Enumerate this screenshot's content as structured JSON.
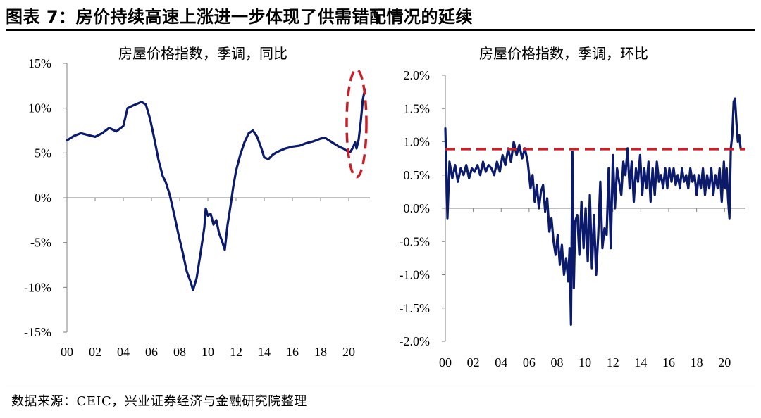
{
  "figure_title": "图表 7：房价持续高速上涨进一步体现了供需错配情况的延续",
  "source": "数据来源：CEIC，兴业证券经济与金融研究院整理",
  "colors": {
    "series": "#0b1a6b",
    "annotation": "#c8202a",
    "axis": "#808080"
  },
  "chart_data": [
    {
      "type": "line",
      "title": "房屋价格指数，季调，同比",
      "xlabel": "",
      "ylabel": "",
      "xlim": [
        2000,
        2021.5
      ],
      "ylim": [
        -0.15,
        0.15
      ],
      "xticks": [
        2000,
        2002,
        2004,
        2006,
        2008,
        2010,
        2012,
        2014,
        2016,
        2018,
        2020
      ],
      "xtick_labels": [
        "00",
        "02",
        "04",
        "06",
        "08",
        "10",
        "12",
        "14",
        "16",
        "18",
        "20"
      ],
      "yticks": [
        0.15,
        0.1,
        0.05,
        0,
        -0.05,
        -0.1,
        -0.15
      ],
      "ytick_labels": [
        "15%",
        "10%",
        "5%",
        "0%",
        "-5%",
        "-10%",
        "-15%"
      ],
      "grid": false,
      "annotation": {
        "type": "dashed-ellipse",
        "label": "",
        "x_range": [
          2019.85,
          2021.25
        ],
        "y_range": [
          0.023,
          0.143
        ]
      },
      "series": [
        {
          "x": [
            2000,
            2000.5,
            2001,
            2001.5,
            2002,
            2002.5,
            2003,
            2003.5,
            2004,
            2004.3,
            2004.7,
            2005,
            2005.3,
            2005.6,
            2005.9,
            2006.2,
            2006.5,
            2006.8,
            2007,
            2007.3,
            2007.6,
            2007.9,
            2008.2,
            2008.5,
            2008.8,
            2008.95,
            2009.2,
            2009.5,
            2009.75,
            2009.85,
            2010,
            2010.2,
            2010.4,
            2010.6,
            2010.8,
            2011,
            2011.2,
            2011.4,
            2011.6,
            2011.8,
            2012,
            2012.3,
            2012.6,
            2012.9,
            2013.2,
            2013.5,
            2013.8,
            2014,
            2014.3,
            2014.6,
            2014.9,
            2015.2,
            2015.5,
            2016,
            2016.5,
            2017,
            2017.5,
            2018,
            2018.3,
            2018.6,
            2019,
            2019.3,
            2019.6,
            2019.9,
            2020.1,
            2020.3,
            2020.45,
            2020.55,
            2020.7,
            2020.85,
            2021,
            2021.15
          ],
          "y": [
            0.064,
            0.069,
            0.072,
            0.07,
            0.068,
            0.072,
            0.078,
            0.074,
            0.08,
            0.1,
            0.103,
            0.105,
            0.107,
            0.104,
            0.088,
            0.066,
            0.042,
            0.024,
            0.018,
            0.003,
            -0.018,
            -0.04,
            -0.06,
            -0.082,
            -0.095,
            -0.103,
            -0.09,
            -0.06,
            -0.033,
            -0.012,
            -0.02,
            -0.018,
            -0.03,
            -0.025,
            -0.04,
            -0.048,
            -0.058,
            -0.03,
            -0.01,
            0.012,
            0.03,
            0.048,
            0.062,
            0.072,
            0.075,
            0.068,
            0.055,
            0.045,
            0.043,
            0.048,
            0.051,
            0.053,
            0.055,
            0.057,
            0.058,
            0.061,
            0.063,
            0.066,
            0.067,
            0.064,
            0.06,
            0.057,
            0.055,
            0.052,
            0.051,
            0.056,
            0.062,
            0.055,
            0.065,
            0.085,
            0.11,
            0.121
          ]
        }
      ]
    },
    {
      "type": "line",
      "title": "房屋价格指数，季调，环比",
      "xlabel": "",
      "ylabel": "",
      "xlim": [
        2000,
        2021.5
      ],
      "ylim": [
        -0.02,
        0.02
      ],
      "xticks": [
        2000,
        2002,
        2004,
        2006,
        2008,
        2010,
        2012,
        2014,
        2016,
        2018,
        2020
      ],
      "xtick_labels": [
        "00",
        "02",
        "04",
        "06",
        "08",
        "10",
        "12",
        "14",
        "16",
        "18",
        "20"
      ],
      "yticks": [
        0.02,
        0.015,
        0.01,
        0.005,
        0,
        -0.005,
        -0.01,
        -0.015,
        -0.02
      ],
      "ytick_labels": [
        "2.0%",
        "1.5%",
        "1.0%",
        "0.5%",
        "0.0%",
        "-0.5%",
        "-1.0%",
        "-1.5%",
        "-2.0%"
      ],
      "grid": false,
      "annotation": {
        "type": "dashed-hline",
        "label": "",
        "y": 0.0089
      },
      "series": [
        {
          "x": [
            2000,
            2000.15,
            2000.3,
            2000.5,
            2000.7,
            2000.9,
            2001.1,
            2001.3,
            2001.5,
            2001.7,
            2001.9,
            2002.1,
            2002.3,
            2002.5,
            2002.7,
            2002.9,
            2003.1,
            2003.3,
            2003.5,
            2003.7,
            2003.9,
            2004.1,
            2004.3,
            2004.5,
            2004.7,
            2004.9,
            2005.1,
            2005.3,
            2005.5,
            2005.7,
            2005.9,
            2006.1,
            2006.25,
            2006.4,
            2006.55,
            2006.7,
            2006.85,
            2007,
            2007.15,
            2007.3,
            2007.45,
            2007.6,
            2007.75,
            2007.9,
            2008.05,
            2008.2,
            2008.35,
            2008.5,
            2008.65,
            2008.8,
            2008.9,
            2009.0,
            2009.1,
            2009.2,
            2009.3,
            2009.45,
            2009.6,
            2009.75,
            2009.9,
            2010.05,
            2010.2,
            2010.35,
            2010.5,
            2010.65,
            2010.8,
            2010.95,
            2011.1,
            2011.25,
            2011.4,
            2011.55,
            2011.7,
            2011.85,
            2012,
            2012.15,
            2012.3,
            2012.45,
            2012.6,
            2012.75,
            2012.9,
            2013.05,
            2013.2,
            2013.35,
            2013.5,
            2013.65,
            2013.8,
            2013.95,
            2014.1,
            2014.25,
            2014.4,
            2014.55,
            2014.7,
            2014.85,
            2015,
            2015.15,
            2015.3,
            2015.45,
            2015.6,
            2015.75,
            2015.9,
            2016.05,
            2016.2,
            2016.35,
            2016.5,
            2016.65,
            2016.8,
            2016.95,
            2017.1,
            2017.25,
            2017.4,
            2017.55,
            2017.7,
            2017.85,
            2018,
            2018.15,
            2018.3,
            2018.45,
            2018.6,
            2018.75,
            2018.9,
            2019.05,
            2019.2,
            2019.35,
            2019.5,
            2019.65,
            2019.8,
            2019.95,
            2020.05,
            2020.15,
            2020.25,
            2020.35,
            2020.45,
            2020.55,
            2020.65,
            2020.75,
            2020.85,
            2020.95,
            2021.05,
            2021.15
          ],
          "y": [
            0.012,
            -0.0015,
            0.007,
            0.0045,
            0.0065,
            0.004,
            0.006,
            0.005,
            0.0065,
            0.0045,
            0.006,
            0.0055,
            0.0065,
            0.005,
            0.007,
            0.0055,
            0.0065,
            0.006,
            0.005,
            0.007,
            0.0055,
            0.008,
            0.0065,
            0.009,
            0.007,
            0.01,
            0.008,
            0.0095,
            0.0075,
            0.009,
            0.007,
            0.003,
            0.005,
            0.001,
            0.0035,
            0.0,
            0.0025,
            0.0035,
            -0.0005,
            0.0015,
            -0.0035,
            -0.0015,
            -0.005,
            -0.007,
            -0.004,
            -0.0085,
            -0.0055,
            -0.01,
            -0.0075,
            -0.011,
            -0.006,
            -0.0175,
            0.0085,
            -0.012,
            -0.002,
            -0.001,
            -0.007,
            0.001,
            -0.006,
            0.0,
            -0.008,
            0.002,
            -0.009,
            -0.001,
            -0.01,
            -0.004,
            0.004,
            -0.006,
            -0.003,
            -0.004,
            0.006,
            -0.006,
            0.008,
            0.0,
            0.006,
            0.004,
            0.002,
            0.007,
            0.005,
            0.009,
            0.003,
            0.007,
            0.001,
            0.006,
            0.004,
            0.008,
            0.002,
            0.006,
            0.003,
            0.007,
            0.001,
            0.006,
            0.002,
            0.007,
            0.004,
            0.005,
            0.003,
            0.006,
            0.003,
            0.006,
            0.004,
            0.006,
            0.0035,
            0.005,
            0.003,
            0.006,
            0.004,
            0.005,
            0.003,
            0.006,
            0.004,
            0.005,
            0.002,
            0.005,
            0.003,
            0.006,
            0.002,
            0.005,
            0.003,
            0.006,
            0.002,
            0.005,
            0.003,
            0.006,
            0.001,
            0.007,
            0.003,
            0.006,
            0.0015,
            -0.0015,
            0.009,
            0.011,
            0.016,
            0.0165,
            0.013,
            0.01,
            0.011,
            0.009
          ]
        }
      ]
    }
  ]
}
